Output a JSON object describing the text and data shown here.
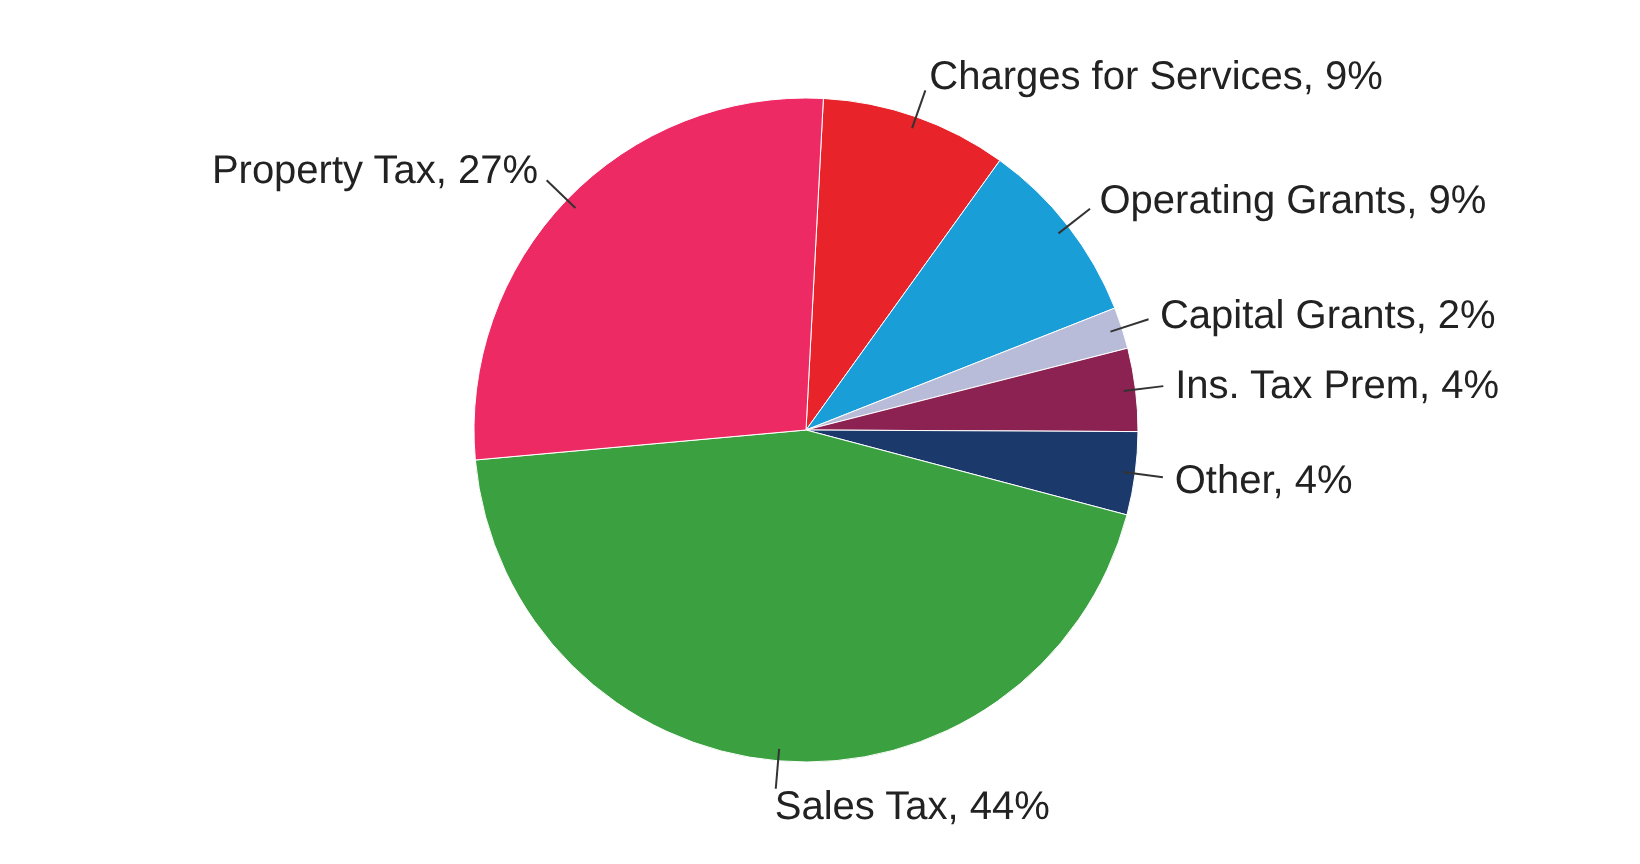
{
  "chart_data": {
    "type": "pie",
    "categories": [
      "Charges for Services",
      "Operating Grants",
      "Capital Grants",
      "Ins. Tax Prem",
      "Other",
      "Sales Tax",
      "Property Tax"
    ],
    "values": [
      9,
      9,
      2,
      4,
      4,
      44,
      27
    ],
    "value_labels": [
      "9%",
      "9%",
      "2%",
      "4%",
      "4%",
      "44%",
      "27%"
    ],
    "colors": [
      "#e8232a",
      "#1a9ed8",
      "#b8bcd8",
      "#8b2252",
      "#1b3a6b",
      "#3aa040",
      "#ee2a64"
    ]
  }
}
